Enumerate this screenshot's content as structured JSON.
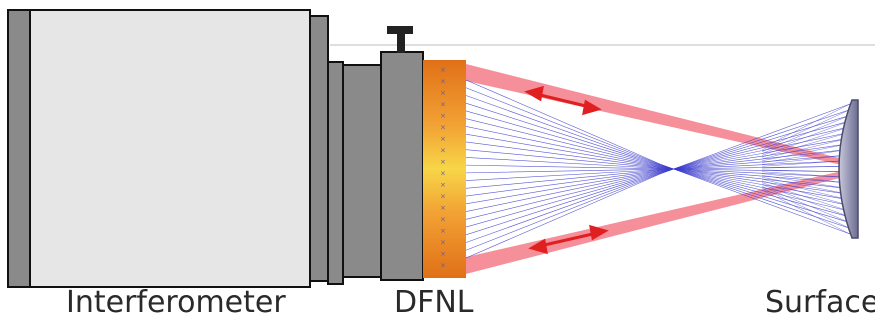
{
  "labels": {
    "interferometer": "Interferometer",
    "dfnl": "DFNL",
    "surface": "Surface"
  },
  "colors": {
    "housing_fill": "#e6e6e6",
    "housing_dark": "#8a8a8a",
    "outline": "#111111",
    "beam_red": "#f26b7a",
    "arrow_red": "#e02020",
    "ray_blue": "#3c3ccc",
    "mirror_fill": "#8a8aa8",
    "lens_gradient": [
      "#e07018",
      "#f0a030",
      "#f6d040",
      "#f0a030",
      "#e07018"
    ]
  }
}
